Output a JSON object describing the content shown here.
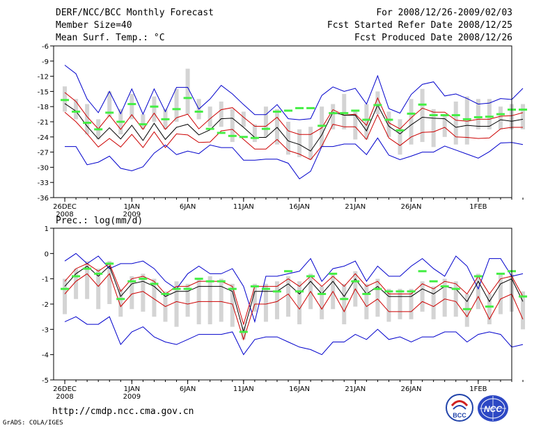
{
  "header": {
    "left": [
      "DERF/NCC/BCC Monthly Forecast",
      "Member Size=40",
      "Mean Surf. Temp.: °C"
    ],
    "right": [
      "For 2008/12/26-2009/02/03",
      "Fcst Started Refer Date 2008/12/25",
      "Fcst Produced Date 2008/12/26"
    ]
  },
  "footer": {
    "url": "http://cmdp.ncc.cma.gov.cn",
    "grads": "GrADS: COLA/IGES",
    "logo_left": "BCC",
    "logo_right": "NCC"
  },
  "colors": {
    "max_line": "#0000cc",
    "mean_line": "#000000",
    "spread_line": "#cc0000",
    "box": "#d4d4d4",
    "obs_marker": "#44ee44"
  },
  "chart_data": [
    {
      "type": "line",
      "title": "Mean Surf. Temp.: °C",
      "ylim": [
        -36,
        -6
      ],
      "yticks": [
        -6,
        -9,
        -12,
        -15,
        -18,
        -21,
        -24,
        -27,
        -30,
        -33,
        -36
      ],
      "xlim": [
        -1,
        40
      ],
      "xticks": [
        {
          "x": 0,
          "label": "26DEC",
          "sub": "2008"
        },
        {
          "x": 6,
          "label": "1JAN",
          "sub": "2009"
        },
        {
          "x": 11,
          "label": "6JAN",
          "sub": ""
        },
        {
          "x": 16,
          "label": "11JAN",
          "sub": ""
        },
        {
          "x": 21,
          "label": "16JAN",
          "sub": ""
        },
        {
          "x": 26,
          "label": "21JAN",
          "sub": ""
        },
        {
          "x": 31,
          "label": "26JAN",
          "sub": ""
        },
        {
          "x": 37,
          "label": "1FEB",
          "sub": ""
        }
      ],
      "series": [
        {
          "name": "max",
          "values": [
            -9.8,
            -11.5,
            -16.5,
            -19.2,
            -15,
            -19.4,
            -14.5,
            -19.5,
            -14.5,
            -19,
            -14.2,
            -14.2,
            -18.5,
            -16.5,
            -13.8,
            -15.5,
            -17.6,
            -19.6,
            -19.6,
            -17.6,
            -20.4,
            -20.6,
            -20.4,
            -15.8,
            -14.1,
            -15,
            -14.4,
            -17.5,
            -11.9,
            -18.4,
            -19.3,
            -15.6,
            -13.6,
            -13.1,
            -15.9,
            -15.5,
            -16.4,
            -17.5,
            -17.3,
            -16.4,
            -16.6,
            -14.4
          ]
        },
        {
          "name": "spread_upper",
          "values": [
            -15.2,
            -17,
            -20,
            -22.4,
            -19.7,
            -22.5,
            -19.6,
            -22.5,
            -19.3,
            -22.5,
            -20.2,
            -19.5,
            -22.4,
            -20.4,
            -18.6,
            -18.2,
            -20.1,
            -21.9,
            -21.9,
            -20.1,
            -22.8,
            -23.5,
            -23.5,
            -22.2,
            -18.6,
            -19.7,
            -19.5,
            -21.7,
            -16.3,
            -21.2,
            -22.4,
            -20.2,
            -18.3,
            -19.1,
            -19.1,
            -20.7,
            -20.9,
            -20.5,
            -20.5,
            -19.9,
            -19.8,
            -19.2
          ]
        },
        {
          "name": "mean",
          "values": [
            -17.4,
            -18.9,
            -21.9,
            -24.4,
            -22.2,
            -24.4,
            -21.7,
            -24.7,
            -21.3,
            -24.5,
            -22.1,
            -21.5,
            -23.6,
            -22.6,
            -20.4,
            -20.3,
            -22.1,
            -24.1,
            -24.1,
            -22.1,
            -24.8,
            -25.5,
            -26.8,
            -23.6,
            -19.1,
            -19.7,
            -19.7,
            -22.8,
            -17.7,
            -21.9,
            -23.4,
            -21.6,
            -20.1,
            -20.3,
            -20.4,
            -22.1,
            -21.7,
            -21.9,
            -21.9,
            -20.6,
            -20.9,
            -20.5
          ]
        },
        {
          "name": "spread_lower",
          "values": [
            -19.1,
            -21,
            -23.4,
            -26,
            -24.3,
            -26,
            -23.5,
            -26.1,
            -23,
            -26.1,
            -23.4,
            -23.6,
            -25.1,
            -25,
            -22.8,
            -22.5,
            -24.5,
            -26.4,
            -26.4,
            -24.5,
            -26.7,
            -27.4,
            -28.5,
            -25.8,
            -21.5,
            -22,
            -22,
            -24.5,
            -19.6,
            -24.2,
            -25.7,
            -24,
            -23.1,
            -23,
            -22.1,
            -24,
            -24.1,
            -24.3,
            -24.2,
            -22.4,
            -22.1,
            -22.1
          ]
        },
        {
          "name": "min",
          "values": [
            -25.9,
            -25.9,
            -29.5,
            -29,
            -27.8,
            -30.2,
            -30.7,
            -29.9,
            -27.2,
            -25.6,
            -27.5,
            -26.8,
            -27.3,
            -25.6,
            -26.1,
            -26.1,
            -28.6,
            -28.6,
            -28.4,
            -28.4,
            -29.2,
            -32.3,
            -30.8,
            -25.9,
            -25.9,
            -25.4,
            -25.4,
            -27.5,
            -24.2,
            -27.6,
            -28.5,
            -27.8,
            -27,
            -27,
            -25.8,
            -26.6,
            -27.4,
            -28.2,
            -26.9,
            -25.2,
            -25.1,
            -25.5
          ]
        }
      ],
      "boxes": [
        [
          -19,
          -14
        ],
        [
          -20.5,
          -16.5
        ],
        [
          -23.5,
          -17.5
        ],
        [
          -24.5,
          -20.5
        ],
        [
          -20,
          -15
        ],
        [
          -23.5,
          -18.5
        ],
        [
          -20.5,
          -15.5
        ],
        [
          -22.5,
          -19.5
        ],
        [
          -21,
          -16
        ],
        [
          -22.5,
          -18.5
        ],
        [
          -21,
          -14.5
        ],
        [
          -19.5,
          -10.5
        ],
        [
          -20.5,
          -16.5
        ],
        [
          -22,
          -18
        ],
        [
          -22,
          -17
        ],
        [
          -25,
          -18.5
        ],
        [
          -22,
          -19
        ],
        [
          -25,
          -21.5
        ],
        [
          -24,
          -18
        ],
        [
          -25.5,
          -18.5
        ],
        [
          -27.5,
          -21
        ],
        [
          -28,
          -22.5
        ],
        [
          -28.5,
          -22
        ],
        [
          -26,
          -18
        ],
        [
          -22.5,
          -17.5
        ],
        [
          -22.5,
          -15.5
        ],
        [
          -24.5,
          -19
        ],
        [
          -24.5,
          -17.5
        ],
        [
          -19.5,
          -15
        ],
        [
          -24,
          -19
        ],
        [
          -27.5,
          -20.5
        ],
        [
          -25.5,
          -16.5
        ],
        [
          -25,
          -14.5
        ],
        [
          -26,
          -18.5
        ],
        [
          -24,
          -19.5
        ],
        [
          -25.5,
          -17
        ],
        [
          -25.5,
          -16
        ],
        [
          -22.5,
          -16.5
        ],
        [
          -22.5,
          -16.5
        ],
        [
          -22.5,
          -18
        ],
        [
          -22.5,
          -17.5
        ],
        [
          -22.5,
          -17.5
        ]
      ],
      "obs": [
        -16.7,
        -19,
        -21.2,
        -22.5,
        -19.2,
        -21,
        -17.5,
        -21.5,
        -18,
        -20.5,
        -18.5,
        -16.3,
        -19,
        -22.4,
        -23.2,
        -23.8,
        -24,
        -24.2,
        -22.4,
        -19,
        -18.8,
        -18.3,
        -18.3,
        -21.8,
        -19.3,
        -19.3,
        -18.8,
        -20.6,
        -17.7,
        -20.6,
        -22.7,
        -19.4,
        -17.6,
        -19.7,
        -19.7,
        -19.7,
        -20.5,
        -20.1,
        -20,
        -19.5,
        -18.6,
        -18.6
      ]
    },
    {
      "type": "line",
      "title": "Prec.: log(mm/d)",
      "ylim": [
        -5,
        1
      ],
      "yticks": [
        1,
        0,
        -1,
        -2,
        -3,
        -4,
        -5
      ],
      "xlim": [
        -1,
        40
      ],
      "xticks": [
        {
          "x": 0,
          "label": "26DEC",
          "sub": "2008"
        },
        {
          "x": 6,
          "label": "1JAN",
          "sub": "2009"
        },
        {
          "x": 11,
          "label": "6JAN",
          "sub": ""
        },
        {
          "x": 16,
          "label": "11JAN",
          "sub": ""
        },
        {
          "x": 21,
          "label": "16JAN",
          "sub": ""
        },
        {
          "x": 26,
          "label": "21JAN",
          "sub": ""
        },
        {
          "x": 31,
          "label": "26JAN",
          "sub": ""
        },
        {
          "x": 37,
          "label": "1FEB",
          "sub": ""
        }
      ],
      "series": [
        {
          "name": "max",
          "values": [
            -0.3,
            0,
            -0.4,
            -0.1,
            -0.6,
            -0.4,
            -0.4,
            -0.3,
            -0.6,
            -1.1,
            -1.4,
            -0.8,
            -0.5,
            -0.8,
            -0.8,
            -0.6,
            -1.3,
            -2.7,
            -0.9,
            -0.9,
            -0.8,
            -0.7,
            -0.2,
            -1.1,
            -0.6,
            -0.5,
            -0.3,
            -1.1,
            -0.5,
            -0.9,
            -0.9,
            -0.5,
            -0.2,
            -0.6,
            -0.9,
            -0.1,
            -0.5,
            -1.4,
            -0.2,
            -0.2,
            -0.9,
            -0.8
          ]
        },
        {
          "name": "spread_upper",
          "values": [
            -1.1,
            -0.6,
            -0.4,
            -0.7,
            -0.4,
            -1.5,
            -1,
            -0.9,
            -1.1,
            -1.6,
            -1.3,
            -1.3,
            -1.1,
            -1.1,
            -1.1,
            -1.3,
            -2.8,
            -1.3,
            -1.3,
            -1.3,
            -1,
            -1.3,
            -0.9,
            -1.3,
            -0.9,
            -1.3,
            -0.8,
            -1.3,
            -1.1,
            -1.6,
            -1.6,
            -1.6,
            -1.2,
            -1.4,
            -1.1,
            -1.2,
            -1.6,
            -0.9,
            -1.6,
            -1,
            -0.9,
            -1.7
          ]
        },
        {
          "name": "mean",
          "values": [
            -1.3,
            -0.8,
            -0.5,
            -0.9,
            -0.5,
            -1.7,
            -1.2,
            -1.1,
            -1.3,
            -1.7,
            -1.5,
            -1.5,
            -1.3,
            -1.3,
            -1.3,
            -1.5,
            -3.1,
            -1.5,
            -1.5,
            -1.5,
            -1.2,
            -1.6,
            -1.1,
            -1.6,
            -1.1,
            -1.7,
            -1,
            -1.6,
            -1.3,
            -1.7,
            -1.7,
            -1.7,
            -1.4,
            -1.6,
            -1.3,
            -1.4,
            -1.9,
            -1.1,
            -1.9,
            -1.2,
            -1,
            -1.9
          ]
        },
        {
          "name": "spread_lower",
          "values": [
            -1.6,
            -1.1,
            -0.8,
            -1.3,
            -0.8,
            -2.1,
            -1.6,
            -1.5,
            -1.8,
            -2.1,
            -1.9,
            -2,
            -1.9,
            -1.9,
            -1.9,
            -2,
            -3.4,
            -2,
            -2,
            -1.9,
            -1.6,
            -2.2,
            -1.5,
            -2.2,
            -1.5,
            -2.3,
            -1.4,
            -2.1,
            -1.8,
            -2.3,
            -2.3,
            -2.3,
            -1.9,
            -2.1,
            -1.8,
            -1.9,
            -2.5,
            -1.7,
            -2.6,
            -1.8,
            -1.6,
            -2.6
          ]
        },
        {
          "name": "min",
          "values": [
            -2.7,
            -2.5,
            -2.8,
            -2.8,
            -2.5,
            -3.6,
            -3.1,
            -2.9,
            -3.3,
            -3.5,
            -3.6,
            -3.4,
            -3.2,
            -3.2,
            -3.2,
            -3.1,
            -4,
            -3.4,
            -3.3,
            -3.3,
            -3.5,
            -3.7,
            -3.8,
            -4,
            -3.5,
            -3.5,
            -3.2,
            -3.4,
            -3,
            -3.4,
            -3.3,
            -3.5,
            -3.3,
            -3.3,
            -3.1,
            -3.1,
            -3.5,
            -3.2,
            -3.1,
            -3.2,
            -3.7,
            -3.6
          ]
        }
      ],
      "boxes": [
        [
          -2.4,
          -1
        ],
        [
          -1.8,
          -0.6
        ],
        [
          -1.8,
          -0.3
        ],
        [
          -2.2,
          -0.6
        ],
        [
          -2,
          -0.3
        ],
        [
          -2.5,
          -1.4
        ],
        [
          -2.2,
          -0.9
        ],
        [
          -2.3,
          -0.8
        ],
        [
          -2.5,
          -1
        ],
        [
          -2.7,
          -1.5
        ],
        [
          -2.9,
          -1.1
        ],
        [
          -2.5,
          -1.2
        ],
        [
          -2.8,
          -1
        ],
        [
          -2.8,
          -0.9
        ],
        [
          -2.7,
          -1
        ],
        [
          -2.9,
          -1.2
        ],
        [
          -3.4,
          -2.9
        ],
        [
          -2.3,
          -1.2
        ],
        [
          -2.7,
          -1.2
        ],
        [
          -2.6,
          -1.1
        ],
        [
          -2.5,
          -0.9
        ],
        [
          -2.8,
          -1.1
        ],
        [
          -2.2,
          -0.8
        ],
        [
          -2.6,
          -1.3
        ],
        [
          -2.2,
          -0.8
        ],
        [
          -2.8,
          -1.2
        ],
        [
          -2.1,
          -0.7
        ],
        [
          -2.6,
          -1.2
        ],
        [
          -2.5,
          -1
        ],
        [
          -2.7,
          -1.4
        ],
        [
          -2.6,
          -1.4
        ],
        [
          -2.6,
          -1.4
        ],
        [
          -2.3,
          -1.1
        ],
        [
          -2.6,
          -1.3
        ],
        [
          -2.5,
          -1
        ],
        [
          -2.5,
          -1.1
        ],
        [
          -2.9,
          -1.6
        ],
        [
          -2.2,
          -0.8
        ],
        [
          -2.8,
          -1.6
        ],
        [
          -2.4,
          -0.8
        ],
        [
          -2.3,
          -0.8
        ],
        [
          -3,
          -1.5
        ]
      ],
      "obs": [
        -1.4,
        -0.9,
        -0.6,
        -0.8,
        -0.4,
        -1.8,
        -1.1,
        -1,
        -1.2,
        -1.6,
        -1.4,
        -1.4,
        -1,
        -1.1,
        -1.1,
        -1.4,
        -3.1,
        -1.3,
        -1.4,
        -1.5,
        -0.7,
        -1.5,
        -0.9,
        -1.6,
        -0.8,
        -1.8,
        -1.1,
        -1.6,
        -1.4,
        -1.5,
        -1.5,
        -1.5,
        -0.7,
        -1.1,
        -1.3,
        -1.4,
        -2.2,
        -0.9,
        -2.1,
        -0.8,
        -0.7,
        -1.7
      ]
    }
  ]
}
